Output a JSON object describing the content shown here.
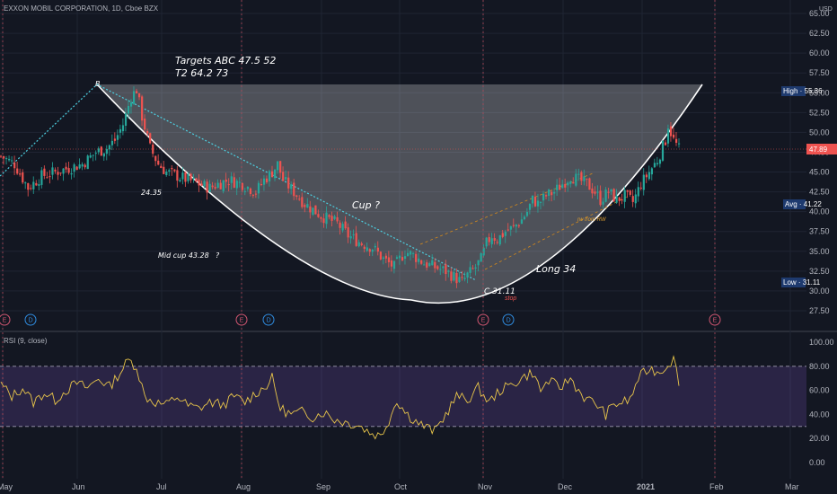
{
  "header": {
    "title": "EXXON MOBIL CORPORATION, 1D, Cboe BZX",
    "currency": "USD"
  },
  "chart_data": {
    "type": "candlestick",
    "x_ticks": [
      "May",
      "Jun",
      "Jul",
      "Aug",
      "Sep",
      "Oct",
      "Nov",
      "Dec",
      "2021",
      "Feb",
      "Mar"
    ],
    "price_axis": {
      "ylim": [
        25,
        65
      ],
      "ticks": [
        "65.00",
        "62.50",
        "60.00",
        "57.50",
        "55.00",
        "52.50",
        "50.00",
        "47.50",
        "45.00",
        "42.50",
        "40.00",
        "37.50",
        "35.00",
        "32.50",
        "30.00",
        "27.50"
      ]
    },
    "price_series": {
      "name": "XOM",
      "path": [
        [
          0,
          47
        ],
        [
          5,
          46
        ],
        [
          10,
          43
        ],
        [
          15,
          44.5
        ],
        [
          20,
          45
        ],
        [
          25,
          45.5
        ],
        [
          30,
          46
        ],
        [
          35,
          47.5
        ],
        [
          39,
          48
        ],
        [
          42,
          49
        ],
        [
          45,
          51
        ],
        [
          48,
          54.5
        ],
        [
          50,
          55.4
        ],
        [
          52,
          52
        ],
        [
          55,
          48
        ],
        [
          58,
          46
        ],
        [
          61,
          45
        ],
        [
          65,
          44.5
        ],
        [
          69,
          44
        ],
        [
          73,
          43.5
        ],
        [
          77,
          43
        ],
        [
          80,
          43.5
        ],
        [
          84,
          44
        ],
        [
          89,
          43.5
        ],
        [
          94,
          42.5
        ],
        [
          97,
          44
        ],
        [
          100,
          45
        ],
        [
          102,
          46
        ],
        [
          104,
          44
        ],
        [
          108,
          42.5
        ],
        [
          112,
          41
        ],
        [
          118,
          39.5
        ],
        [
          124,
          38.5
        ],
        [
          128,
          37
        ],
        [
          133,
          36
        ],
        [
          137,
          35.5
        ],
        [
          141,
          34
        ],
        [
          143,
          33.5
        ],
        [
          145,
          33
        ],
        [
          147,
          34
        ],
        [
          149,
          35
        ],
        [
          152,
          34.5
        ],
        [
          156,
          33.5
        ],
        [
          160,
          33
        ],
        [
          164,
          32.5
        ],
        [
          167,
          31.8
        ],
        [
          170,
          31.1
        ],
        [
          172,
          32
        ],
        [
          175,
          33
        ],
        [
          177,
          34
        ],
        [
          179,
          36
        ],
        [
          181,
          37
        ],
        [
          183,
          36.5
        ],
        [
          186,
          37.5
        ],
        [
          189,
          38
        ],
        [
          192,
          39
        ],
        [
          194,
          40
        ],
        [
          196,
          41.5
        ],
        [
          198,
          41
        ],
        [
          201,
          42
        ],
        [
          204,
          42.5
        ],
        [
          207,
          43.5
        ],
        [
          210,
          44.5
        ],
        [
          213,
          44
        ],
        [
          216,
          43.5
        ],
        [
          219,
          42.5
        ],
        [
          221,
          41.5
        ],
        [
          224,
          42.5
        ],
        [
          227,
          41.5
        ],
        [
          230,
          42
        ],
        [
          233,
          41.2
        ],
        [
          236,
          43.5
        ],
        [
          239,
          45
        ],
        [
          242,
          46.5
        ],
        [
          245,
          49
        ],
        [
          246,
          51
        ],
        [
          248,
          49
        ],
        [
          250,
          47.9
        ]
      ],
      "annotations_prices": {
        "high": "High · 55.36",
        "last": "47.89",
        "avg": "Avg · 41.22",
        "low": "Low · 31.11"
      }
    },
    "rsi": {
      "name": "RSI (9, close)",
      "ylim": [
        -10,
        105
      ],
      "ticks": [
        "100.00",
        "80.00",
        "60.00",
        "40.00",
        "20.00",
        "0.00"
      ],
      "bands": [
        80,
        30
      ],
      "path": [
        [
          0,
          65
        ],
        [
          4,
          55
        ],
        [
          8,
          62
        ],
        [
          12,
          50
        ],
        [
          16,
          58
        ],
        [
          20,
          52
        ],
        [
          24,
          60
        ],
        [
          28,
          66
        ],
        [
          32,
          62
        ],
        [
          36,
          70
        ],
        [
          40,
          63
        ],
        [
          44,
          75
        ],
        [
          47,
          85
        ],
        [
          50,
          80
        ],
        [
          53,
          55
        ],
        [
          57,
          50
        ],
        [
          61,
          48
        ],
        [
          65,
          55
        ],
        [
          69,
          47
        ],
        [
          73,
          45
        ],
        [
          77,
          50
        ],
        [
          82,
          48
        ],
        [
          86,
          55
        ],
        [
          90,
          50
        ],
        [
          94,
          58
        ],
        [
          97,
          62
        ],
        [
          100,
          70
        ],
        [
          103,
          45
        ],
        [
          107,
          40
        ],
        [
          111,
          42
        ],
        [
          115,
          38
        ],
        [
          119,
          42
        ],
        [
          123,
          36
        ],
        [
          128,
          33
        ],
        [
          132,
          31
        ],
        [
          136,
          25
        ],
        [
          140,
          22
        ],
        [
          143,
          35
        ],
        [
          146,
          52
        ],
        [
          149,
          42
        ],
        [
          152,
          36
        ],
        [
          156,
          30
        ],
        [
          160,
          26
        ],
        [
          164,
          40
        ],
        [
          168,
          55
        ],
        [
          172,
          52
        ],
        [
          176,
          62
        ],
        [
          180,
          50
        ],
        [
          184,
          60
        ],
        [
          188,
          64
        ],
        [
          192,
          70
        ],
        [
          196,
          75
        ],
        [
          199,
          60
        ],
        [
          202,
          68
        ],
        [
          206,
          62
        ],
        [
          210,
          70
        ],
        [
          213,
          60
        ],
        [
          216,
          52
        ],
        [
          219,
          50
        ],
        [
          223,
          40
        ],
        [
          226,
          48
        ],
        [
          229,
          50
        ],
        [
          232,
          52
        ],
        [
          235,
          70
        ],
        [
          239,
          78
        ],
        [
          243,
          75
        ],
        [
          246,
          82
        ],
        [
          248,
          86
        ],
        [
          250,
          68
        ]
      ]
    },
    "annotations": {
      "targets_line1": "Targets ABC  47.5  52",
      "targets_line2": "T2 64.2  73",
      "b_label": "B",
      "level_2435": "24.35",
      "cup_label": "Cup  ?",
      "mid_cup": "Mid cup 43.28",
      "mid_cup_q": "?",
      "long_label": "Long 34",
      "c_label": "C 31.11",
      "stop_label": "stop",
      "rw_label": "rw from RW"
    },
    "events": [
      "E",
      "D",
      "E",
      "D",
      "E",
      "D",
      "E"
    ]
  }
}
